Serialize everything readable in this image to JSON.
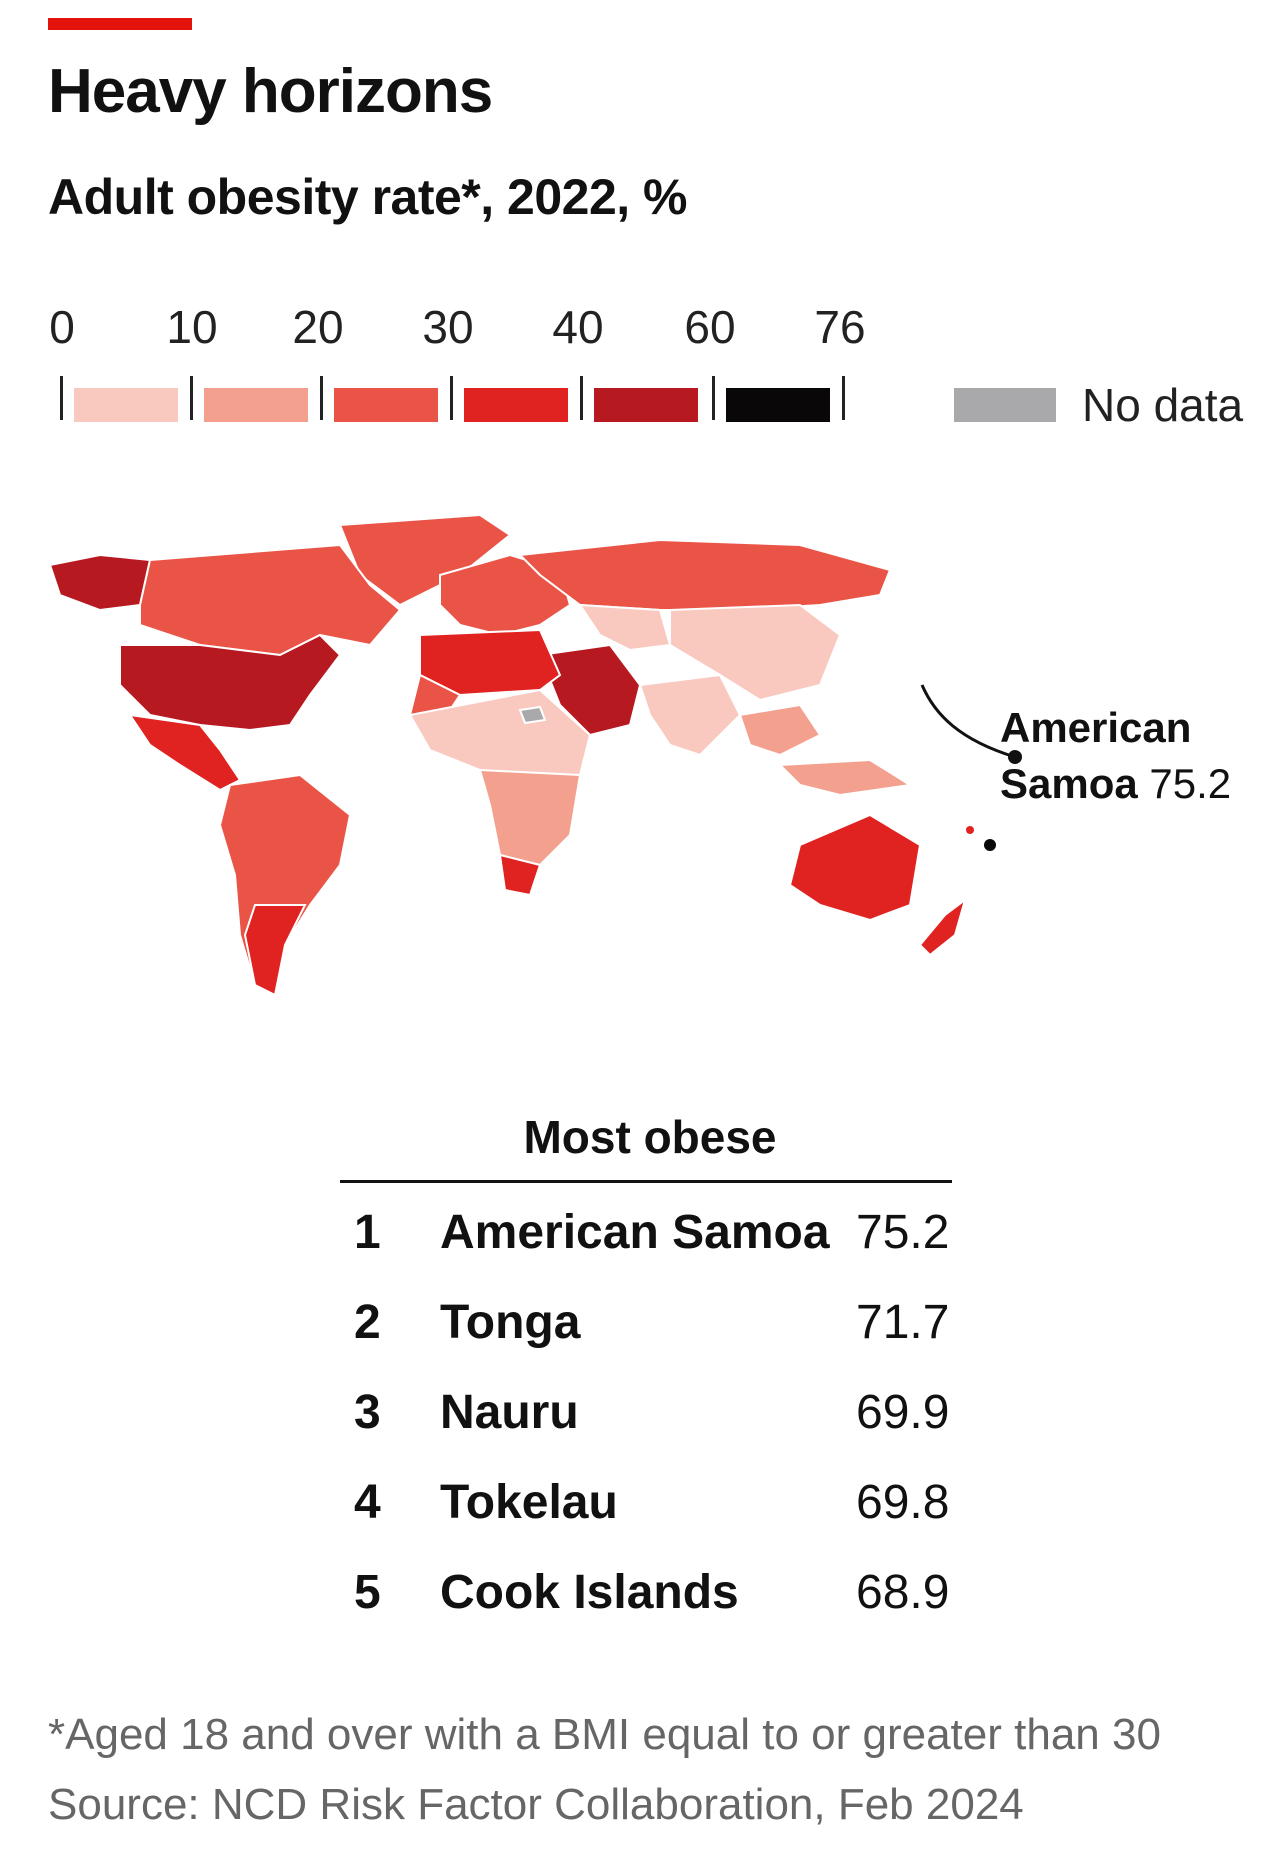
{
  "title": "Heavy horizons",
  "subtitle": "Adult obesity rate*, 2022, %",
  "legend": {
    "ticks": [
      "0",
      "10",
      "20",
      "30",
      "40",
      "60",
      "76"
    ],
    "bins": [
      {
        "from": 0,
        "to": 10,
        "color": "#f9c9c0"
      },
      {
        "from": 10,
        "to": 20,
        "color": "#f3a08f"
      },
      {
        "from": 20,
        "to": 30,
        "color": "#ea5447"
      },
      {
        "from": 30,
        "to": 40,
        "color": "#e02220"
      },
      {
        "from": 40,
        "to": 60,
        "color": "#b71921"
      },
      {
        "from": 60,
        "to": 76,
        "color": "#090707"
      }
    ],
    "no_data_label": "No data",
    "no_data_color": "#a9a9ab"
  },
  "callout": {
    "country_line1": "American",
    "country_line2": "Samoa",
    "value": "75.2"
  },
  "table": {
    "title": "Most obese",
    "rows": [
      {
        "rank": "1",
        "country": "American Samoa",
        "value": "75.2"
      },
      {
        "rank": "2",
        "country": "Tonga",
        "value": "71.7"
      },
      {
        "rank": "3",
        "country": "Nauru",
        "value": "69.9"
      },
      {
        "rank": "4",
        "country": "Tokelau",
        "value": "69.8"
      },
      {
        "rank": "5",
        "country": "Cook Islands",
        "value": "68.9"
      }
    ]
  },
  "footnote": "*Aged 18 and over with a BMI equal to or greater than 30",
  "source": "Source: NCD Risk Factor Collaboration, Feb 2024"
}
